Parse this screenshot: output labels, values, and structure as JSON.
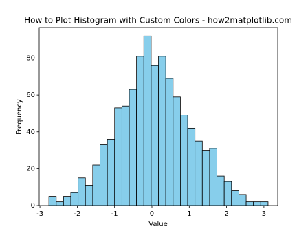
{
  "chart_data": {
    "type": "histogram",
    "title": "How to Plot Histogram with Custom Colors - how2matplotlib.com",
    "x_label": "Value",
    "y_label": "Frequency",
    "bins": [
      -2.76,
      -2.564,
      -2.369,
      -2.173,
      -1.977,
      -1.782,
      -1.586,
      -1.39,
      -1.194,
      -0.999,
      -0.803,
      -0.607,
      -0.412,
      -0.216,
      -0.02,
      0.175,
      0.371,
      0.567,
      0.763,
      0.958,
      1.154,
      1.35,
      1.545,
      1.741,
      1.937,
      2.132,
      2.328,
      2.524,
      2.72,
      2.915,
      3.111
    ],
    "values": [
      5,
      2,
      5,
      7,
      15,
      11,
      22,
      33,
      36,
      53,
      54,
      63,
      81,
      92,
      76,
      81,
      69,
      59,
      49,
      42,
      35,
      30,
      31,
      16,
      13,
      8,
      6,
      2,
      2,
      2
    ],
    "color": "#87ceeb",
    "edgecolor": "#000000",
    "xlim": [
      -3.02,
      3.37
    ],
    "xticks": [
      -3,
      -2,
      -1,
      0,
      1,
      2,
      3
    ],
    "ylim": [
      0,
      96.6
    ],
    "yticks": [
      0,
      20,
      40,
      60,
      80
    ]
  }
}
